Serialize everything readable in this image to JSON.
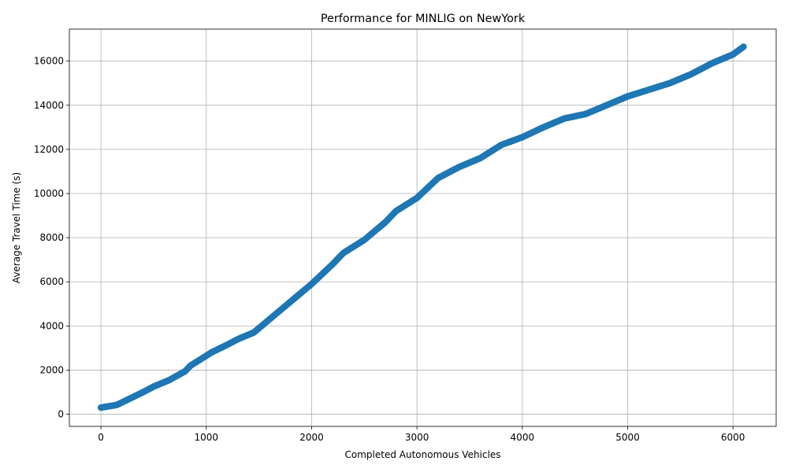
{
  "chart_data": {
    "type": "scatter",
    "title": "Performance for MINLIG on NewYork",
    "xlabel": "Completed Autonomous Vehicles",
    "ylabel": "Average Travel Time (s)",
    "xlim": [
      -300,
      6410
    ],
    "ylim": [
      -550,
      17450
    ],
    "xticks": [
      0,
      1000,
      2000,
      3000,
      4000,
      5000,
      6000
    ],
    "yticks": [
      0,
      2000,
      4000,
      6000,
      8000,
      10000,
      12000,
      14000,
      16000
    ],
    "grid": true,
    "marker_color": "#1f77b4",
    "series": [
      {
        "name": "MINLIG",
        "anchors_x": [
          0,
          100,
          150,
          250,
          400,
          500,
          650,
          800,
          850,
          950,
          1050,
          1200,
          1300,
          1450,
          1600,
          1800,
          2000,
          2200,
          2300,
          2500,
          2700,
          2800,
          3000,
          3200,
          3400,
          3600,
          3700,
          3800,
          4000,
          4200,
          4400,
          4600,
          4800,
          5000,
          5200,
          5400,
          5600,
          5800,
          6000,
          6100
        ],
        "anchors_y": [
          300,
          380,
          420,
          650,
          1000,
          1250,
          1550,
          1950,
          2200,
          2500,
          2800,
          3150,
          3400,
          3700,
          4300,
          5100,
          5900,
          6800,
          7300,
          7900,
          8700,
          9200,
          9800,
          10700,
          11200,
          11600,
          11900,
          12200,
          12550,
          13000,
          13400,
          13600,
          14000,
          14400,
          14700,
          15000,
          15400,
          15900,
          16300,
          16650
        ],
        "count": 6100
      }
    ]
  }
}
